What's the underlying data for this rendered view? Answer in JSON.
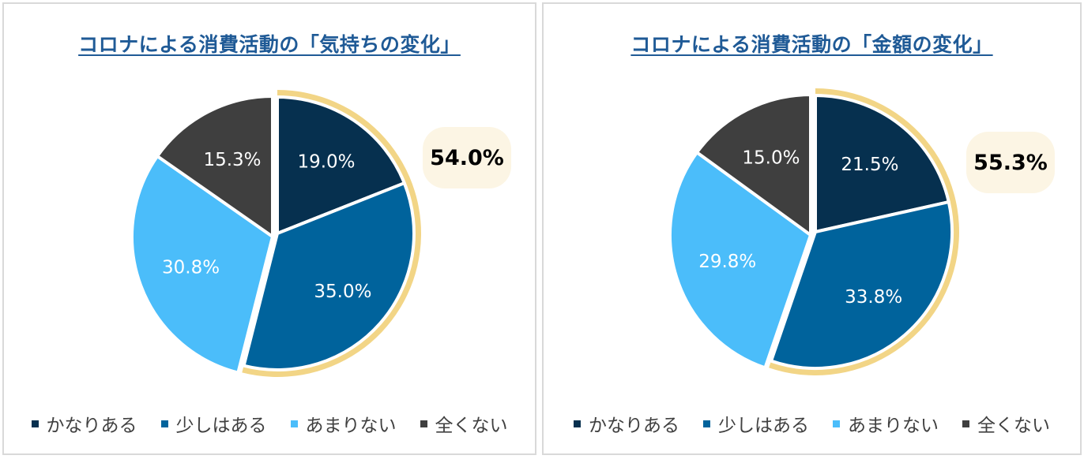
{
  "colors": {
    "かなりある": "#06304f",
    "少しはある": "#00639c",
    "あまりない": "#4bbdfa",
    "全くない": "#3f3f3f",
    "highlight": "#f2d586",
    "title": "#1f5a96"
  },
  "chart_data": [
    {
      "type": "pie",
      "title": "コロナによる消費活動の「気持ちの変化」",
      "categories": [
        "かなりある",
        "少しはある",
        "あまりない",
        "全くない"
      ],
      "values": [
        19.0,
        35.0,
        30.8,
        15.3
      ],
      "labels": [
        "19.0%",
        "35.0%",
        "30.8%",
        "15.3%"
      ],
      "highlighted_total": "54.0%",
      "highlighted_categories": [
        "かなりある",
        "少しはある"
      ],
      "legend": [
        "かなりある",
        "少しはある",
        "あまりない",
        "全くない"
      ],
      "legend_position": "bottom"
    },
    {
      "type": "pie",
      "title": "コロナによる消費活動の「金額の変化」",
      "categories": [
        "かなりある",
        "少しはある",
        "あまりない",
        "全くない"
      ],
      "values": [
        21.5,
        33.8,
        29.8,
        15.0
      ],
      "labels": [
        "21.5%",
        "33.8%",
        "29.8%",
        "15.0%"
      ],
      "highlighted_total": "55.3%",
      "highlighted_categories": [
        "かなりある",
        "少しはある"
      ],
      "legend": [
        "かなりある",
        "少しはある",
        "あまりない",
        "全くない"
      ],
      "legend_position": "bottom"
    }
  ]
}
